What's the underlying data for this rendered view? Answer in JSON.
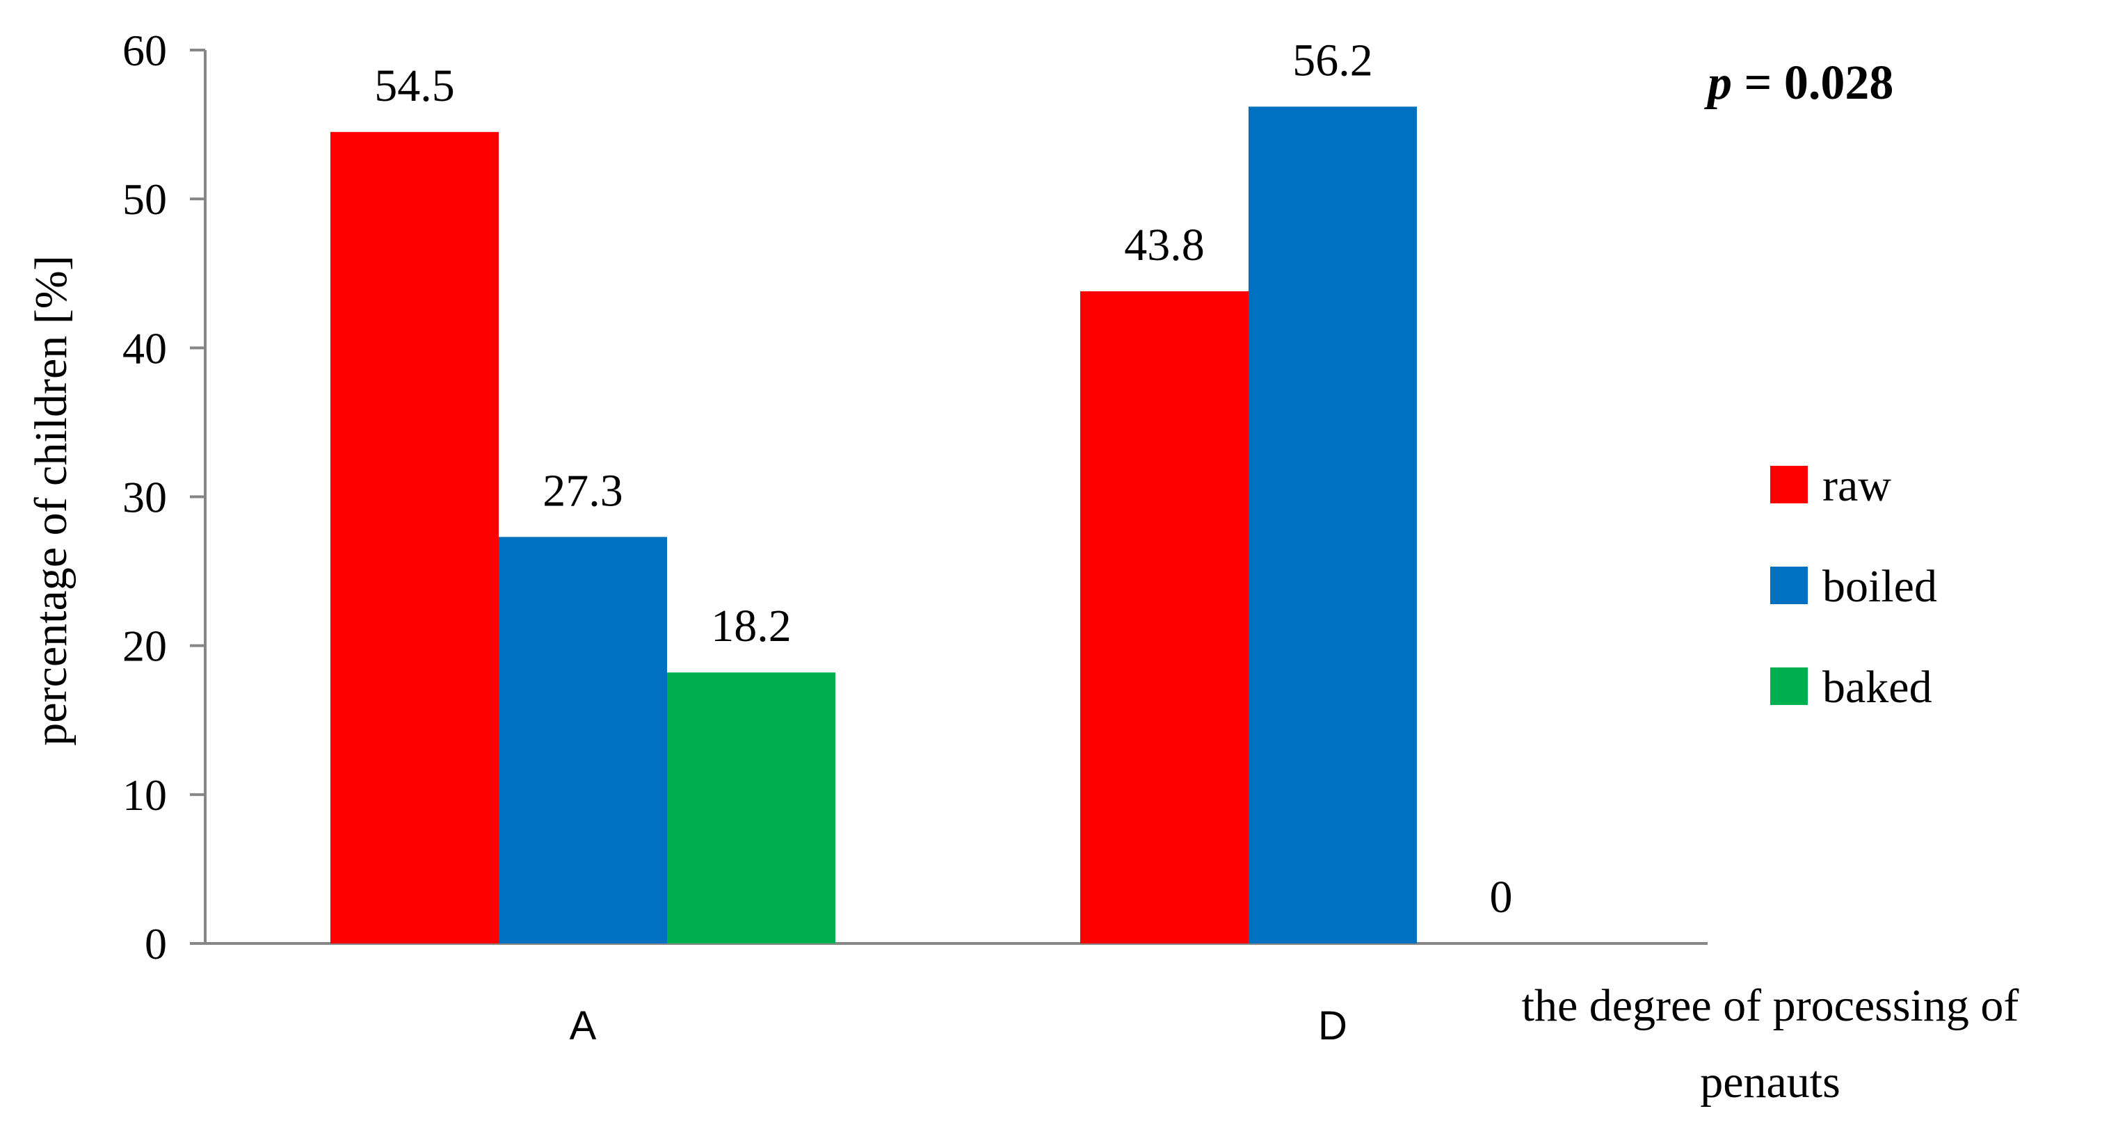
{
  "chart_data": {
    "type": "bar",
    "categories": [
      "A",
      "D"
    ],
    "series": [
      {
        "name": "raw",
        "values": [
          54.5,
          43.8
        ],
        "color": "#ff0000"
      },
      {
        "name": "boiled",
        "values": [
          27.3,
          56.2
        ],
        "color": "#0070c0"
      },
      {
        "name": "baked",
        "values": [
          18.2,
          0
        ],
        "color": "#00b050"
      }
    ],
    "data_labels": [
      [
        "54.5",
        "43.8"
      ],
      [
        "27.3",
        "56.2"
      ],
      [
        "18.2",
        "0"
      ]
    ],
    "ylabel": "percentage of children [%]",
    "xlabel_line1": "the degree of processing of",
    "xlabel_line2": "penauts",
    "ylim": [
      0,
      60
    ],
    "yticks": [
      0,
      10,
      20,
      30,
      40,
      50,
      60
    ],
    "annotation_p_symbol": "p",
    "annotation_p_value": " = 0.028",
    "legend_position": "right",
    "grid": false
  }
}
